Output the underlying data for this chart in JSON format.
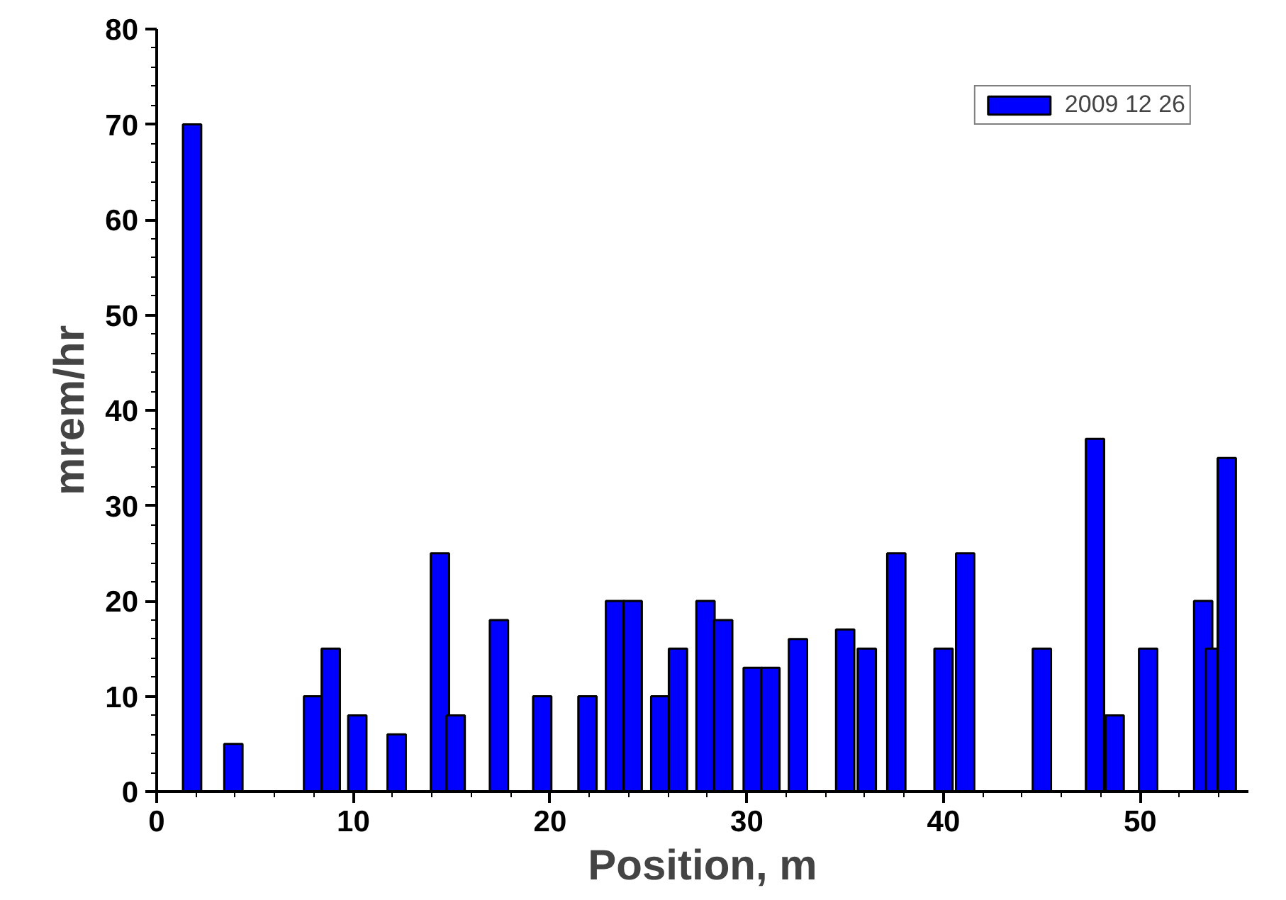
{
  "chart_data": {
    "type": "bar",
    "xlabel": "Position, m",
    "ylabel": "mrem/hr",
    "x": [
      1.8,
      3.9,
      7.95,
      8.85,
      10.2,
      12.2,
      14.4,
      15.2,
      17.4,
      19.6,
      21.9,
      23.3,
      24.2,
      25.6,
      26.5,
      27.9,
      28.8,
      30.3,
      31.2,
      32.6,
      35.0,
      36.1,
      37.6,
      40.0,
      41.1,
      45.0,
      47.7,
      48.7,
      50.4,
      53.2,
      53.8,
      54.4
    ],
    "series": [
      {
        "name": "2009 12 26",
        "color": "#0000ff",
        "values": [
          70,
          5,
          10,
          15,
          8,
          6,
          25,
          8,
          18,
          10,
          10,
          20,
          20,
          10,
          15,
          20,
          18,
          13,
          13,
          16,
          17,
          15,
          25,
          15,
          25,
          15,
          37,
          8,
          15,
          20,
          15,
          35
        ]
      }
    ],
    "xlim": [
      0,
      55.5
    ],
    "ylim": [
      0,
      80
    ],
    "xticks": [
      0,
      10,
      20,
      30,
      40,
      50
    ],
    "yticks": [
      0,
      10,
      20,
      30,
      40,
      50,
      60,
      70,
      80
    ],
    "grid": false,
    "legend": "top right"
  }
}
